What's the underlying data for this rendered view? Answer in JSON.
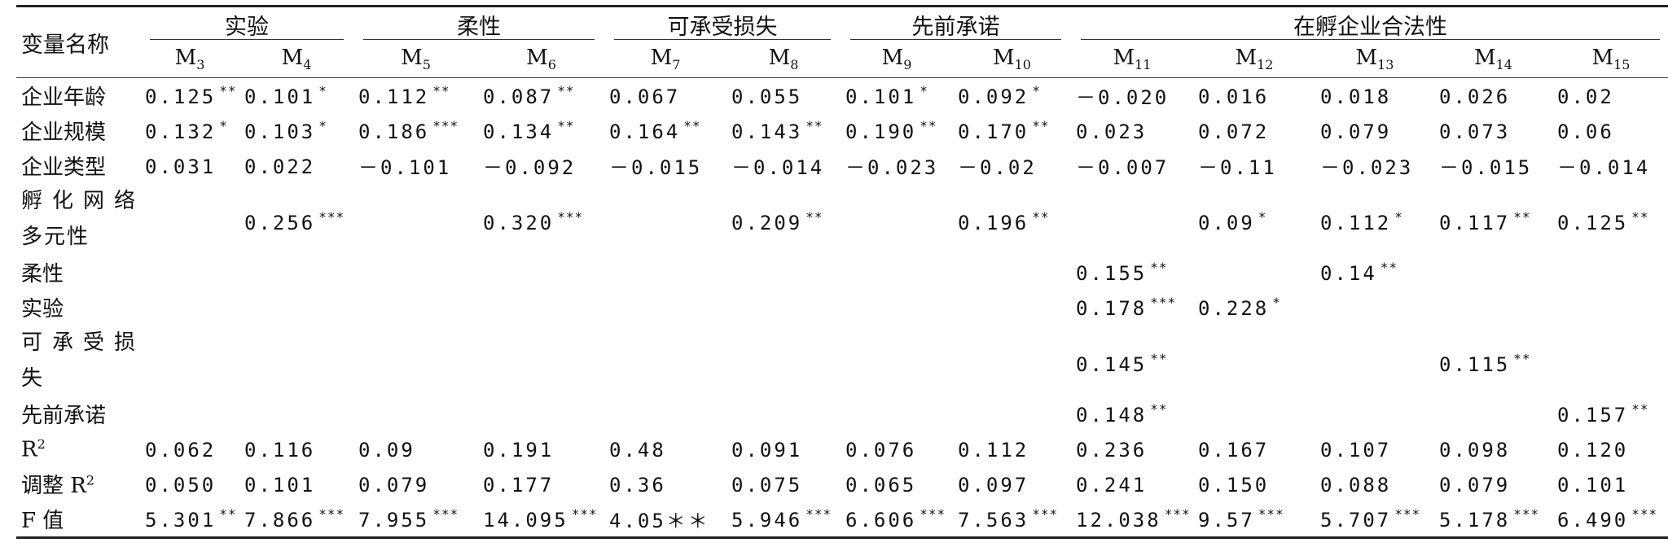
{
  "header": {
    "var_name": "变量名称",
    "groups": [
      "实验",
      "柔性",
      "可承受损失",
      "先前承诺",
      "在孵企业合法性"
    ],
    "models": [
      {
        "m": "M",
        "s": "3"
      },
      {
        "m": "M",
        "s": "4"
      },
      {
        "m": "M",
        "s": "5"
      },
      {
        "m": "M",
        "s": "6"
      },
      {
        "m": "M",
        "s": "7"
      },
      {
        "m": "M",
        "s": "8"
      },
      {
        "m": "M",
        "s": "9"
      },
      {
        "m": "M",
        "s": "10"
      },
      {
        "m": "M",
        "s": "11"
      },
      {
        "m": "M",
        "s": "12"
      },
      {
        "m": "M",
        "s": "13"
      },
      {
        "m": "M",
        "s": "14"
      },
      {
        "m": "M",
        "s": "15"
      }
    ]
  },
  "rows": [
    {
      "label": "企业年龄",
      "cells": [
        {
          "v": "0.125",
          "s": "**"
        },
        {
          "v": "0.101",
          "s": "*"
        },
        {
          "v": "0.112",
          "s": "**"
        },
        {
          "v": "0.087",
          "s": "**"
        },
        {
          "v": "0.067",
          "s": ""
        },
        {
          "v": "0.055",
          "s": ""
        },
        {
          "v": "0.101",
          "s": "*"
        },
        {
          "v": "0.092",
          "s": "*"
        },
        {
          "v": "－0.020",
          "s": ""
        },
        {
          "v": "0.016",
          "s": ""
        },
        {
          "v": "0.018",
          "s": ""
        },
        {
          "v": "0.026",
          "s": ""
        },
        {
          "v": "0.02",
          "s": ""
        }
      ]
    },
    {
      "label": "企业规模",
      "cells": [
        {
          "v": "0.132",
          "s": "*"
        },
        {
          "v": "0.103",
          "s": "*"
        },
        {
          "v": "0.186",
          "s": "***"
        },
        {
          "v": "0.134",
          "s": "**"
        },
        {
          "v": "0.164",
          "s": "**"
        },
        {
          "v": "0.143",
          "s": "**"
        },
        {
          "v": "0.190",
          "s": "**"
        },
        {
          "v": "0.170",
          "s": "**"
        },
        {
          "v": "0.023",
          "s": ""
        },
        {
          "v": "0.072",
          "s": ""
        },
        {
          "v": "0.079",
          "s": ""
        },
        {
          "v": "0.073",
          "s": ""
        },
        {
          "v": "0.06",
          "s": ""
        }
      ]
    },
    {
      "label": "企业类型",
      "cells": [
        {
          "v": "0.031",
          "s": ""
        },
        {
          "v": "0.022",
          "s": ""
        },
        {
          "v": "－0.101",
          "s": ""
        },
        {
          "v": "－0.092",
          "s": ""
        },
        {
          "v": "－0.015",
          "s": ""
        },
        {
          "v": "－0.014",
          "s": ""
        },
        {
          "v": "－0.023",
          "s": ""
        },
        {
          "v": "－0.02",
          "s": ""
        },
        {
          "v": "－0.007",
          "s": ""
        },
        {
          "v": "－0.11",
          "s": ""
        },
        {
          "v": "－0.023",
          "s": ""
        },
        {
          "v": "－0.015",
          "s": ""
        },
        {
          "v": "－0.014",
          "s": ""
        }
      ]
    },
    {
      "label": "孵化网络多元性",
      "label_line1": "孵化网络",
      "label_line2": "多元性",
      "cells": [
        {
          "v": "",
          "s": ""
        },
        {
          "v": "0.256",
          "s": "***"
        },
        {
          "v": "",
          "s": ""
        },
        {
          "v": "0.320",
          "s": "***"
        },
        {
          "v": "",
          "s": ""
        },
        {
          "v": "0.209",
          "s": "**"
        },
        {
          "v": "",
          "s": ""
        },
        {
          "v": "0.196",
          "s": "**"
        },
        {
          "v": "",
          "s": ""
        },
        {
          "v": "0.09",
          "s": "*"
        },
        {
          "v": "0.112",
          "s": "*"
        },
        {
          "v": "0.117",
          "s": "**"
        },
        {
          "v": "0.125",
          "s": "**"
        }
      ]
    },
    {
      "label": "柔性",
      "cells": [
        {
          "v": "",
          "s": ""
        },
        {
          "v": "",
          "s": ""
        },
        {
          "v": "",
          "s": ""
        },
        {
          "v": "",
          "s": ""
        },
        {
          "v": "",
          "s": ""
        },
        {
          "v": "",
          "s": ""
        },
        {
          "v": "",
          "s": ""
        },
        {
          "v": "",
          "s": ""
        },
        {
          "v": "0.155",
          "s": "**"
        },
        {
          "v": "",
          "s": ""
        },
        {
          "v": "0.14",
          "s": "**"
        },
        {
          "v": "",
          "s": ""
        },
        {
          "v": "",
          "s": ""
        }
      ]
    },
    {
      "label": "实验",
      "cells": [
        {
          "v": "",
          "s": ""
        },
        {
          "v": "",
          "s": ""
        },
        {
          "v": "",
          "s": ""
        },
        {
          "v": "",
          "s": ""
        },
        {
          "v": "",
          "s": ""
        },
        {
          "v": "",
          "s": ""
        },
        {
          "v": "",
          "s": ""
        },
        {
          "v": "",
          "s": ""
        },
        {
          "v": "0.178",
          "s": "***"
        },
        {
          "v": "0.228",
          "s": "*"
        },
        {
          "v": "",
          "s": ""
        },
        {
          "v": "",
          "s": ""
        },
        {
          "v": "",
          "s": ""
        }
      ]
    },
    {
      "label": "可承受损失",
      "label_line1": "可承受损",
      "label_line2": "失",
      "cells": [
        {
          "v": "",
          "s": ""
        },
        {
          "v": "",
          "s": ""
        },
        {
          "v": "",
          "s": ""
        },
        {
          "v": "",
          "s": ""
        },
        {
          "v": "",
          "s": ""
        },
        {
          "v": "",
          "s": ""
        },
        {
          "v": "",
          "s": ""
        },
        {
          "v": "",
          "s": ""
        },
        {
          "v": "0.145",
          "s": "**"
        },
        {
          "v": "",
          "s": ""
        },
        {
          "v": "",
          "s": ""
        },
        {
          "v": "0.115",
          "s": "**"
        },
        {
          "v": "",
          "s": ""
        }
      ]
    },
    {
      "label": "先前承诺",
      "cells": [
        {
          "v": "",
          "s": ""
        },
        {
          "v": "",
          "s": ""
        },
        {
          "v": "",
          "s": ""
        },
        {
          "v": "",
          "s": ""
        },
        {
          "v": "",
          "s": ""
        },
        {
          "v": "",
          "s": ""
        },
        {
          "v": "",
          "s": ""
        },
        {
          "v": "",
          "s": ""
        },
        {
          "v": "0.148",
          "s": "**"
        },
        {
          "v": "",
          "s": ""
        },
        {
          "v": "",
          "s": ""
        },
        {
          "v": "",
          "s": ""
        },
        {
          "v": "0.157",
          "s": "**"
        }
      ]
    },
    {
      "label": "R",
      "label_sup": "2",
      "cells": [
        {
          "v": "0.062",
          "s": ""
        },
        {
          "v": "0.116",
          "s": ""
        },
        {
          "v": "0.09",
          "s": ""
        },
        {
          "v": "0.191",
          "s": ""
        },
        {
          "v": "0.48",
          "s": ""
        },
        {
          "v": "0.091",
          "s": ""
        },
        {
          "v": "0.076",
          "s": ""
        },
        {
          "v": "0.112",
          "s": ""
        },
        {
          "v": "0.236",
          "s": ""
        },
        {
          "v": "0.167",
          "s": ""
        },
        {
          "v": "0.107",
          "s": ""
        },
        {
          "v": "0.098",
          "s": ""
        },
        {
          "v": "0.120",
          "s": ""
        }
      ]
    },
    {
      "label": "调整 R",
      "label_sup": "2",
      "cells": [
        {
          "v": "0.050",
          "s": ""
        },
        {
          "v": "0.101",
          "s": ""
        },
        {
          "v": "0.079",
          "s": ""
        },
        {
          "v": "0.177",
          "s": ""
        },
        {
          "v": "0.36",
          "s": ""
        },
        {
          "v": "0.075",
          "s": ""
        },
        {
          "v": "0.065",
          "s": ""
        },
        {
          "v": "0.097",
          "s": ""
        },
        {
          "v": "0.241",
          "s": ""
        },
        {
          "v": "0.150",
          "s": ""
        },
        {
          "v": "0.088",
          "s": ""
        },
        {
          "v": "0.079",
          "s": ""
        },
        {
          "v": "0.101",
          "s": ""
        }
      ]
    },
    {
      "label": "F 值",
      "cells": [
        {
          "v": "5.301",
          "s": "**"
        },
        {
          "v": "7.866",
          "s": "***"
        },
        {
          "v": "7.955",
          "s": "***"
        },
        {
          "v": "14.095",
          "s": "***"
        },
        {
          "v": "4.05＊＊",
          "s": ""
        },
        {
          "v": "5.946",
          "s": "***"
        },
        {
          "v": "6.606",
          "s": "***"
        },
        {
          "v": "7.563",
          "s": "***"
        },
        {
          "v": "12.038",
          "s": "***"
        },
        {
          "v": "9.57",
          "s": "***"
        },
        {
          "v": "5.707",
          "s": "***"
        },
        {
          "v": "5.178",
          "s": "***"
        },
        {
          "v": "6.490",
          "s": "***"
        }
      ]
    }
  ]
}
